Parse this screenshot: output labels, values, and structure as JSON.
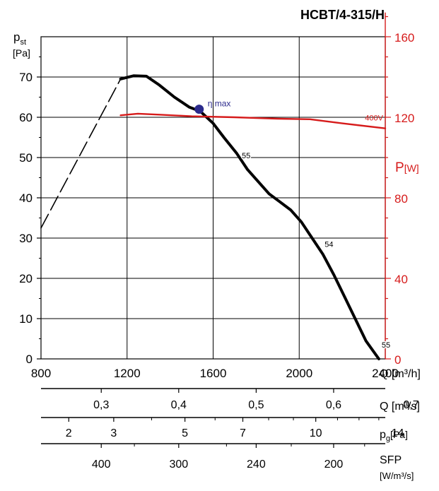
{
  "chart_data": {
    "type": "line",
    "title": "HCBT/4-315/H",
    "y_left": {
      "label_main": "p",
      "label_sub": "st",
      "unit": "[Pa]",
      "ticks": [
        "0",
        "10",
        "20",
        "30",
        "40",
        "50",
        "60",
        "70"
      ],
      "range": [
        0,
        80
      ]
    },
    "y_right": {
      "label_main": "P",
      "unit": "[W]",
      "ticks": [
        "0",
        "40",
        "80",
        "120",
        "160"
      ],
      "range": [
        0,
        160
      ]
    },
    "x": {
      "label": "Q [m³/h]",
      "ticks": [
        "800",
        "1200",
        "1600",
        "2000",
        "2400"
      ],
      "range": [
        800,
        2400
      ]
    },
    "grid": true,
    "series": [
      {
        "role": "pressure_stall",
        "style": "dashed",
        "color": "#000000",
        "points": [
          [
            800,
            32.5
          ],
          [
            1170,
            69.5
          ]
        ]
      },
      {
        "role": "pressure",
        "color": "#000000",
        "points": [
          [
            1170,
            69.5
          ],
          [
            1230,
            70.3
          ],
          [
            1290,
            70.2
          ],
          [
            1350,
            68.0
          ],
          [
            1420,
            65.0
          ],
          [
            1490,
            62.5
          ],
          [
            1540,
            61.5
          ],
          [
            1600,
            58.5
          ],
          [
            1650,
            55.0
          ],
          [
            1710,
            51.0
          ],
          [
            1760,
            47.0
          ],
          [
            1810,
            44.0
          ],
          [
            1860,
            41.0
          ],
          [
            1910,
            39.0
          ],
          [
            1960,
            37.0
          ],
          [
            2010,
            34.0
          ],
          [
            2060,
            30.0
          ],
          [
            2110,
            26.0
          ],
          [
            2160,
            21.0
          ],
          [
            2210,
            15.5
          ],
          [
            2260,
            10.0
          ],
          [
            2310,
            4.5
          ],
          [
            2370,
            0
          ]
        ]
      },
      {
        "name": "400V",
        "role": "power",
        "color": "#d61b1b",
        "axis": "right",
        "points": [
          [
            1170,
            121
          ],
          [
            1250,
            121.8
          ],
          [
            1350,
            121.3
          ],
          [
            1500,
            120.5
          ],
          [
            1700,
            120
          ],
          [
            1900,
            119.3
          ],
          [
            2050,
            119
          ],
          [
            2200,
            117
          ],
          [
            2400,
            114.5
          ]
        ]
      }
    ],
    "annotations": [
      {
        "text": "η max",
        "x": 1535,
        "y": 62.0,
        "marker": true
      },
      {
        "text": "55",
        "x": 1720,
        "y": 50.5
      },
      {
        "text": "54",
        "x": 2105,
        "y": 28.5
      },
      {
        "text": "55",
        "x": 2370,
        "y": 3.5
      }
    ],
    "secondary_scales": [
      {
        "label": "Q [m³/s]",
        "ticks": [
          {
            "label": "0,3",
            "q_m3h": 1080
          },
          {
            "label": "0,4",
            "q_m3h": 1440
          },
          {
            "label": "0,5",
            "q_m3h": 1800
          },
          {
            "label": "0,6",
            "q_m3h": 2160
          },
          {
            "label": "0,7",
            "q_m3h": 2520
          }
        ]
      },
      {
        "label_main": "p",
        "label_sub": "g",
        "unit": "[Pa]",
        "ticks": [
          {
            "label": "2",
            "q_m3h": 929
          },
          {
            "label": "3",
            "q_m3h": 1138
          },
          {
            "label": "5",
            "q_m3h": 1469
          },
          {
            "label": "7",
            "q_m3h": 1738
          },
          {
            "label": "10",
            "q_m3h": 2077
          },
          {
            "label": "14",
            "q_m3h": 2458
          }
        ],
        "minor_ticks": [
          {
            "q_m3h": 1314
          },
          {
            "q_m3h": 1609
          },
          {
            "q_m3h": 1858
          },
          {
            "q_m3h": 1973
          },
          {
            "q_m3h": 2178
          },
          {
            "q_m3h": 2278
          },
          {
            "q_m3h": 2370
          }
        ]
      },
      {
        "label": "SFP",
        "unit": "[W/m³/s]",
        "ticks": [
          {
            "label": "400",
            "q_m3h": 1080
          },
          {
            "label": "300",
            "q_m3h": 1440
          },
          {
            "label": "240",
            "q_m3h": 1800
          },
          {
            "label": "200",
            "q_m3h": 2160
          }
        ],
        "minor_ticks": [
          {
            "q_m3h": 1234
          },
          {
            "q_m3h": 1662
          },
          {
            "q_m3h": 1963
          },
          {
            "q_m3h": 2304
          }
        ]
      }
    ]
  }
}
